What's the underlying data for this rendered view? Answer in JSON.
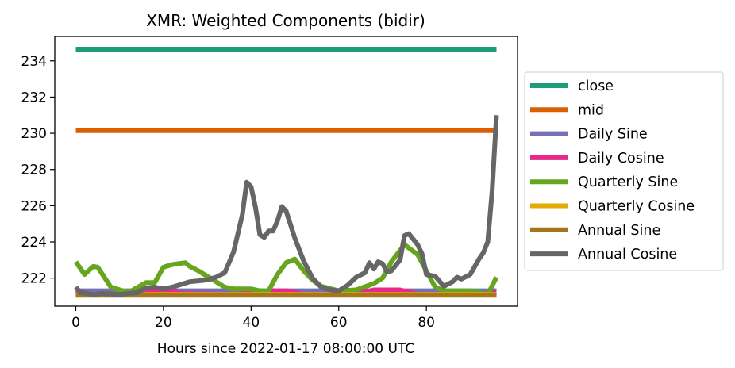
{
  "chart_data": {
    "type": "line",
    "title": "XMR: Weighted Components (bidir)",
    "xlabel": "Hours since 2022-01-17 08:00:00 UTC",
    "ylabel": "",
    "xlim": [
      -4.8,
      100.8
    ],
    "ylim": [
      220.45,
      235.35
    ],
    "x_ticks": [
      0,
      20,
      40,
      60,
      80
    ],
    "y_ticks": [
      222,
      224,
      226,
      228,
      230,
      232,
      234
    ],
    "grid": false,
    "legend_position": "outside-right",
    "series": [
      {
        "name": "close",
        "color": "#1b9e77",
        "points": [
          [
            0,
            234.65
          ],
          [
            96,
            234.65
          ]
        ]
      },
      {
        "name": "mid",
        "color": "#d95f02",
        "points": [
          [
            0,
            230.15
          ],
          [
            96,
            230.15
          ]
        ]
      },
      {
        "name": "Daily Sine",
        "color": "#7570b3",
        "points": [
          [
            0,
            221.3
          ],
          [
            10,
            221.3
          ],
          [
            20,
            221.3
          ],
          [
            30,
            221.3
          ],
          [
            40,
            221.3
          ],
          [
            50,
            221.3
          ],
          [
            60,
            221.3
          ],
          [
            70,
            221.3
          ],
          [
            80,
            221.3
          ],
          [
            90,
            221.3
          ],
          [
            96,
            221.3
          ]
        ]
      },
      {
        "name": "Daily Cosine",
        "color": "#e7298a",
        "points": [
          [
            0,
            221.3
          ],
          [
            3,
            221.1
          ],
          [
            10,
            221.1
          ],
          [
            14,
            221.35
          ],
          [
            20,
            221.35
          ],
          [
            24,
            221.15
          ],
          [
            36,
            221.1
          ],
          [
            44,
            221.3
          ],
          [
            48,
            221.3
          ],
          [
            52,
            221.1
          ],
          [
            64,
            221.1
          ],
          [
            68,
            221.35
          ],
          [
            74,
            221.35
          ],
          [
            78,
            221.1
          ],
          [
            90,
            221.1
          ],
          [
            96,
            221.2
          ]
        ]
      },
      {
        "name": "Quarterly Sine",
        "color": "#66a61e",
        "points": [
          [
            0,
            222.9
          ],
          [
            2,
            222.2
          ],
          [
            4,
            222.65
          ],
          [
            5,
            222.6
          ],
          [
            8,
            221.5
          ],
          [
            12,
            221.2
          ],
          [
            16,
            221.75
          ],
          [
            18,
            221.75
          ],
          [
            20,
            222.6
          ],
          [
            22,
            222.75
          ],
          [
            25,
            222.85
          ],
          [
            26,
            222.65
          ],
          [
            28,
            222.4
          ],
          [
            32,
            221.8
          ],
          [
            34,
            221.5
          ],
          [
            36,
            221.4
          ],
          [
            40,
            221.4
          ],
          [
            42,
            221.3
          ],
          [
            44,
            221.3
          ],
          [
            46,
            222.2
          ],
          [
            48,
            222.85
          ],
          [
            50,
            223.05
          ],
          [
            52,
            222.4
          ],
          [
            54,
            221.9
          ],
          [
            56,
            221.55
          ],
          [
            60,
            221.3
          ],
          [
            64,
            221.35
          ],
          [
            68,
            221.7
          ],
          [
            70,
            222.0
          ],
          [
            72,
            222.9
          ],
          [
            75,
            223.85
          ],
          [
            78,
            223.3
          ],
          [
            80,
            222.4
          ],
          [
            82,
            221.5
          ],
          [
            84,
            221.3
          ],
          [
            90,
            221.3
          ],
          [
            94,
            221.1
          ],
          [
            96,
            222.05
          ]
        ]
      },
      {
        "name": "Quarterly Cosine",
        "color": "#e6ab02",
        "points": [
          [
            0,
            221.1
          ],
          [
            96,
            221.1
          ]
        ]
      },
      {
        "name": "Annual Sine",
        "color": "#a6761d",
        "points": [
          [
            0,
            221.05
          ],
          [
            96,
            221.05
          ]
        ]
      },
      {
        "name": "Annual Cosine",
        "color": "#666666",
        "points": [
          [
            0,
            221.5
          ],
          [
            1,
            221.2
          ],
          [
            4,
            221.1
          ],
          [
            6,
            221.15
          ],
          [
            10,
            221.1
          ],
          [
            14,
            221.2
          ],
          [
            16,
            221.45
          ],
          [
            18,
            221.5
          ],
          [
            20,
            221.4
          ],
          [
            22,
            221.5
          ],
          [
            24,
            221.65
          ],
          [
            26,
            221.8
          ],
          [
            28,
            221.85
          ],
          [
            30,
            221.9
          ],
          [
            32,
            222.05
          ],
          [
            34,
            222.3
          ],
          [
            36,
            223.45
          ],
          [
            38,
            225.5
          ],
          [
            39,
            227.3
          ],
          [
            40,
            227.05
          ],
          [
            41,
            225.9
          ],
          [
            42,
            224.4
          ],
          [
            43,
            224.25
          ],
          [
            44,
            224.6
          ],
          [
            45,
            224.6
          ],
          [
            46,
            225.15
          ],
          [
            47,
            225.95
          ],
          [
            48,
            225.7
          ],
          [
            50,
            224.2
          ],
          [
            52,
            222.95
          ],
          [
            54,
            222.0
          ],
          [
            56,
            221.5
          ],
          [
            58,
            221.35
          ],
          [
            60,
            221.3
          ],
          [
            62,
            221.6
          ],
          [
            64,
            222.05
          ],
          [
            66,
            222.3
          ],
          [
            67,
            222.85
          ],
          [
            68,
            222.5
          ],
          [
            69,
            222.9
          ],
          [
            70,
            222.8
          ],
          [
            71,
            222.35
          ],
          [
            72,
            222.4
          ],
          [
            74,
            223.0
          ],
          [
            75,
            224.35
          ],
          [
            76,
            224.45
          ],
          [
            78,
            223.85
          ],
          [
            79,
            223.35
          ],
          [
            80,
            222.2
          ],
          [
            82,
            222.1
          ],
          [
            84,
            221.55
          ],
          [
            86,
            221.8
          ],
          [
            87,
            222.05
          ],
          [
            88,
            221.95
          ],
          [
            90,
            222.2
          ],
          [
            92,
            223.05
          ],
          [
            93,
            223.4
          ],
          [
            94,
            224.0
          ],
          [
            95,
            226.8
          ],
          [
            96,
            231.0
          ]
        ]
      }
    ]
  }
}
